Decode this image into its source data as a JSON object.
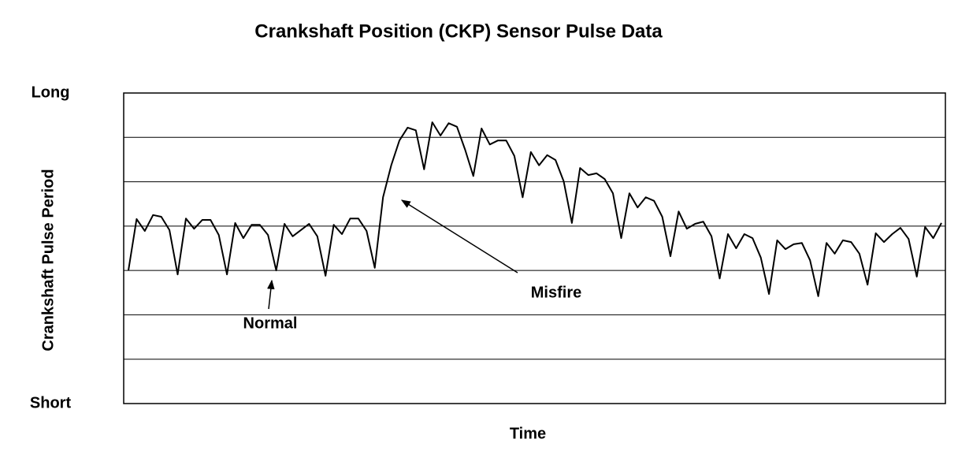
{
  "chart_data": {
    "type": "line",
    "title": "Crankshaft Position (CKP) Sensor Pulse Data",
    "x_label": "Time",
    "y_label": "Crankshaft Pulse Period",
    "ylim": [
      0,
      7
    ],
    "yticks": [
      {
        "value": 0,
        "label": "Short"
      },
      {
        "value": 1,
        "label": null
      },
      {
        "value": 2,
        "label": null
      },
      {
        "value": 3,
        "label": null
      },
      {
        "value": 4,
        "label": null
      },
      {
        "value": 5,
        "label": null
      },
      {
        "value": 6,
        "label": null
      },
      {
        "value": 7,
        "label": "Long"
      }
    ],
    "grid": true,
    "color": "#000000",
    "values": [
      3.0,
      4.16,
      3.89,
      4.25,
      4.21,
      3.91,
      2.91,
      4.17,
      3.94,
      4.14,
      4.14,
      3.8,
      2.91,
      4.07,
      3.73,
      4.03,
      4.03,
      3.8,
      3.0,
      4.05,
      3.77,
      3.91,
      4.05,
      3.77,
      2.88,
      4.03,
      3.82,
      4.17,
      4.17,
      3.89,
      3.06,
      4.65,
      5.37,
      5.93,
      6.22,
      6.16,
      5.28,
      6.34,
      6.04,
      6.32,
      6.24,
      5.72,
      5.13,
      6.2,
      5.84,
      5.93,
      5.93,
      5.58,
      4.65,
      5.67,
      5.37,
      5.6,
      5.49,
      5.01,
      4.07,
      5.31,
      5.15,
      5.19,
      5.06,
      4.74,
      3.73,
      4.74,
      4.42,
      4.65,
      4.57,
      4.21,
      3.32,
      4.33,
      3.94,
      4.05,
      4.1,
      3.77,
      2.82,
      3.82,
      3.5,
      3.82,
      3.73,
      3.29,
      2.47,
      3.68,
      3.48,
      3.59,
      3.62,
      3.23,
      2.42,
      3.62,
      3.38,
      3.68,
      3.64,
      3.38,
      2.68,
      3.84,
      3.64,
      3.82,
      3.96,
      3.71,
      2.86,
      3.98,
      3.73,
      4.07
    ],
    "annotations": [
      "Normal",
      "Misfire"
    ]
  }
}
